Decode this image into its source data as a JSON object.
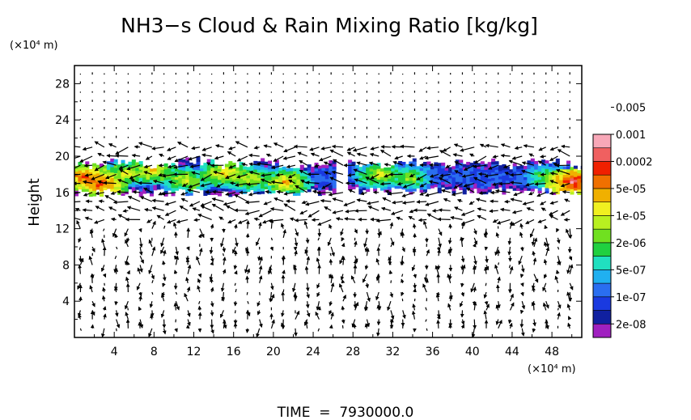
{
  "chart_data": {
    "type": "heatmap",
    "title": "NH3−s Cloud & Rain Mixing Ratio [kg/kg]",
    "y_unit": "(×10⁴ m)",
    "x_unit": "(×10⁴ m)",
    "ylabel": "Height",
    "xlabel": "",
    "footer": "TIME  =  7930000.0",
    "xlim": [
      0,
      51
    ],
    "ylim": [
      0,
      30
    ],
    "x_ticks": [
      4,
      8,
      12,
      16,
      20,
      24,
      28,
      32,
      36,
      40,
      44,
      48
    ],
    "x_tick_labels": [
      "4",
      "8",
      "12",
      "16",
      "20",
      "24",
      "28",
      "32",
      "36",
      "40",
      "44",
      "48"
    ],
    "y_ticks": [
      4,
      8,
      12,
      16,
      20,
      24,
      28
    ],
    "y_tick_labels": [
      "4",
      "8",
      "12",
      "16",
      "20",
      "24",
      "28"
    ],
    "colorbar": {
      "colors": [
        "#a020c0",
        "#1020a0",
        "#1a3ae0",
        "#2a6ef0",
        "#20b0f0",
        "#20e0c0",
        "#20d040",
        "#70e020",
        "#b8f020",
        "#f0f020",
        "#f0b000",
        "#f07000",
        "#f02000",
        "#f06060",
        "#f8a8b8"
      ],
      "labels": [
        "2e-08",
        "1e-07",
        "5e-07",
        "2e-06",
        "1e-05",
        "5e-05",
        "0.0002",
        "0.001",
        "0.005"
      ]
    },
    "cloud_band": {
      "segments": [
        {
          "x": [
            0,
            26
          ],
          "y_bottom": 16.0,
          "y_top": 19.8
        },
        {
          "x": [
            27.5,
            51
          ],
          "y_bottom": 16.2,
          "y_top": 19.8
        }
      ],
      "cores": [
        {
          "x": 1.0,
          "y": 17.5,
          "level": 12
        },
        {
          "x": 2.5,
          "y": 16.8,
          "level": 12
        },
        {
          "x": 5.0,
          "y": 18.0,
          "level": 9
        },
        {
          "x": 7.5,
          "y": 18.3,
          "level": 10
        },
        {
          "x": 11.0,
          "y": 17.2,
          "level": 9
        },
        {
          "x": 15.0,
          "y": 18.0,
          "level": 10
        },
        {
          "x": 17.5,
          "y": 17.4,
          "level": 9
        },
        {
          "x": 21.0,
          "y": 17.0,
          "level": 10
        },
        {
          "x": 30.5,
          "y": 17.8,
          "level": 9
        },
        {
          "x": 33.5,
          "y": 17.5,
          "level": 8
        },
        {
          "x": 47.5,
          "y": 17.5,
          "level": 8
        },
        {
          "x": 50.0,
          "y": 17.0,
          "level": 13
        }
      ]
    },
    "wind_vectors": "arrow field on a regular grid, strongest within the cloud band (about 13–21 ×10⁴ m height)"
  }
}
